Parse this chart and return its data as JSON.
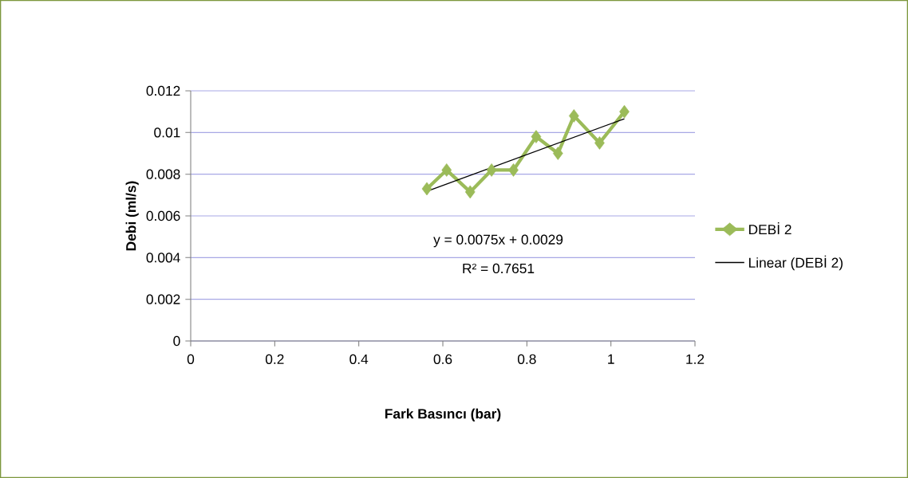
{
  "chart_data": {
    "type": "line",
    "xlabel": "Fark Basıncı (bar)",
    "ylabel": "Debi (ml/s)",
    "annotations": [
      "y = 0.0075x + 0.0029",
      "R² = 0.7651"
    ],
    "xlim": [
      0,
      1.2
    ],
    "ylim": [
      0,
      0.012
    ],
    "xticks": [
      0,
      0.2,
      0.4,
      0.6,
      0.8,
      1,
      1.2
    ],
    "yticks": [
      0,
      0.002,
      0.004,
      0.006,
      0.008,
      0.01,
      0.012
    ],
    "grid": "y",
    "legend": "right",
    "series": [
      {
        "name": "DEBİ 2",
        "color": "#9bbb59",
        "marker": "diamond",
        "x": [
          0.562,
          0.609,
          0.665,
          0.716,
          0.768,
          0.822,
          0.874,
          0.912,
          0.973,
          1.032
        ],
        "values": [
          0.0073,
          0.0082,
          0.00715,
          0.0082,
          0.0082,
          0.0098,
          0.009,
          0.0108,
          0.0095,
          0.011
        ]
      },
      {
        "name": "Linear (DEBİ 2)",
        "type": "line",
        "color": "#000000",
        "marker": "none",
        "x": [
          0.562,
          1.032
        ],
        "values": [
          0.00718,
          0.01066
        ]
      }
    ]
  }
}
